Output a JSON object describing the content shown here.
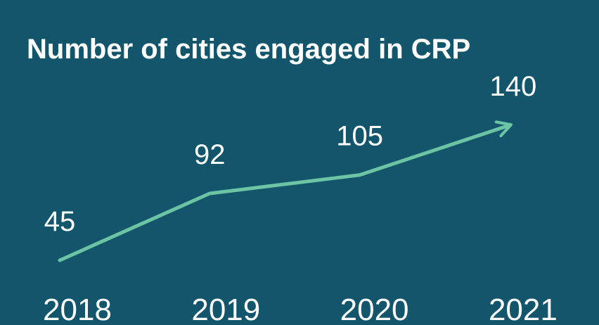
{
  "chart_data": {
    "type": "line",
    "title": "Number of cities engaged in CRP",
    "categories": [
      "2018",
      "2019",
      "2020",
      "2021"
    ],
    "values": [
      45,
      92,
      105,
      140
    ],
    "color": "#6cc4a4",
    "background": "#13566b"
  }
}
